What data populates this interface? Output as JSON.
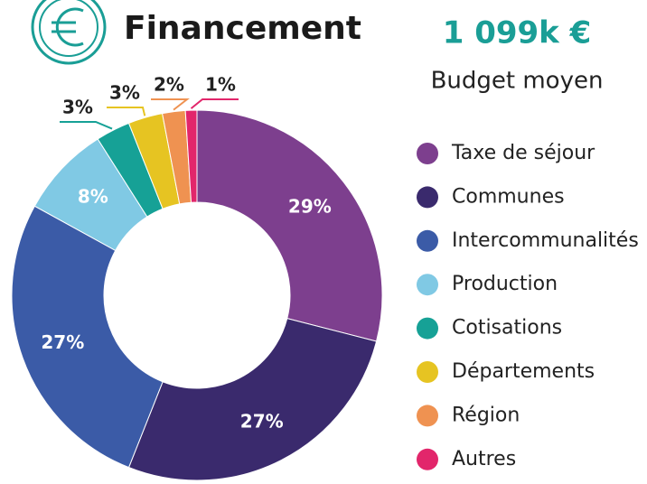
{
  "chart_data": {
    "type": "donut",
    "title": "Financement",
    "headline": "1 099k €",
    "subtitle": "Budget moyen",
    "categories": [
      "Taxe de séjour",
      "Communes",
      "Intercommunalités",
      "Production",
      "Cotisations",
      "Départements",
      "Région",
      "Autres"
    ],
    "values": [
      29,
      27,
      27,
      8,
      3,
      3,
      2,
      1
    ],
    "value_labels": [
      "29%",
      "27%",
      "27%",
      "8%",
      "3%",
      "3%",
      "2%",
      "1%"
    ],
    "colors": [
      "#7d3f8e",
      "#3a2a6d",
      "#3b5ba7",
      "#80c9e4",
      "#16a196",
      "#e6c422",
      "#ef9251",
      "#e2266b"
    ]
  }
}
